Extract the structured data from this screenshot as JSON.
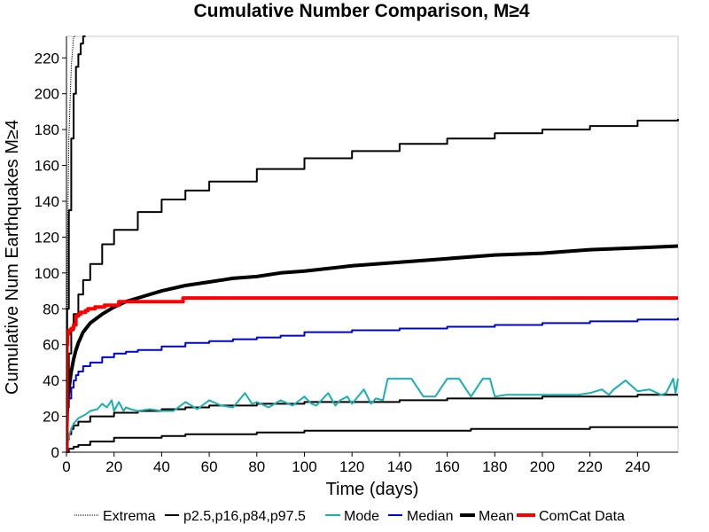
{
  "chart_data": {
    "type": "line",
    "title": "Cumulative Number Comparison, M≥4",
    "xlabel": "Time (days)",
    "ylabel": "Cumulative Num Earthquakes M≥4",
    "xlim": [
      0,
      257
    ],
    "ylim": [
      0,
      232
    ],
    "xticks": [
      0,
      20,
      40,
      60,
      80,
      100,
      120,
      140,
      160,
      180,
      200,
      220,
      240
    ],
    "yticks": [
      0,
      20,
      40,
      60,
      80,
      100,
      120,
      140,
      160,
      180,
      200,
      220
    ],
    "grid": false,
    "legend_position": "bottom",
    "legend": [
      {
        "label": "Extrema",
        "color": "#000000",
        "style": "dotted"
      },
      {
        "label": "p2.5,p16,p84,p97.5",
        "color": "#000000",
        "style": "thin"
      },
      {
        "label": "Mode",
        "color": "#1ab0b0",
        "style": "thin"
      },
      {
        "label": "Median",
        "color": "#0000dd",
        "style": "thin"
      },
      {
        "label": "Mean",
        "color": "#000000",
        "style": "thick"
      },
      {
        "label": "ComCat Data",
        "color": "#ff0000",
        "style": "thick"
      }
    ],
    "series": [
      {
        "name": "Extrema",
        "color": "#000000",
        "style": "dotted",
        "x": [
          0,
          0.5,
          1,
          2,
          3,
          4
        ],
        "y": [
          0,
          120,
          175,
          215,
          232,
          232
        ]
      },
      {
        "name": "Extrema",
        "color": "#000000",
        "style": "dotted",
        "x": [
          0,
          257
        ],
        "y": [
          0,
          0
        ]
      },
      {
        "name": "p2.5,p16,p84,p97.5",
        "color": "#000000",
        "style": "thin",
        "step": true,
        "x": [
          0,
          0.3,
          1,
          2,
          3,
          4,
          5,
          6,
          7,
          8
        ],
        "y": [
          0,
          80,
          135,
          175,
          200,
          215,
          222,
          228,
          232,
          232
        ]
      },
      {
        "name": "p2.5,p16,p84,p97.5",
        "color": "#000000",
        "style": "thin",
        "step": true,
        "x": [
          0,
          0.5,
          1,
          2,
          3,
          5,
          7,
          10,
          15,
          20,
          30,
          40,
          50,
          60,
          80,
          100,
          120,
          140,
          160,
          180,
          200,
          220,
          240,
          257
        ],
        "y": [
          0,
          35,
          55,
          68,
          77,
          88,
          96,
          105,
          116,
          124,
          134,
          141,
          146,
          151,
          158,
          164,
          168,
          172,
          175,
          178,
          180,
          182,
          185,
          186
        ]
      },
      {
        "name": "p2.5,p16,p84,p97.5",
        "color": "#000000",
        "style": "thin",
        "step": true,
        "x": [
          0,
          0.5,
          1,
          2,
          3,
          5,
          10,
          20,
          30,
          40,
          50,
          60,
          80,
          100,
          120,
          140,
          160,
          180,
          200,
          220,
          240,
          257
        ],
        "y": [
          0,
          7,
          10,
          13,
          15,
          17,
          20,
          22,
          23,
          24,
          25,
          26,
          27,
          28,
          28,
          29,
          30,
          30,
          31,
          31,
          32,
          32
        ]
      },
      {
        "name": "p2.5,p16,p84,p97.5",
        "color": "#000000",
        "style": "thin",
        "step": true,
        "x": [
          0,
          1,
          3,
          5,
          10,
          20,
          40,
          50,
          80,
          100,
          130,
          170,
          200,
          220,
          257
        ],
        "y": [
          0,
          2,
          3,
          4,
          6,
          8,
          9,
          10,
          11,
          12,
          12,
          13,
          13,
          14,
          14
        ]
      },
      {
        "name": "Mode",
        "color": "#1ab0b0",
        "style": "thin",
        "x": [
          0,
          1,
          2,
          3,
          5,
          8,
          10,
          13,
          15,
          17,
          19,
          20,
          22,
          24,
          25,
          27,
          30,
          35,
          40,
          45,
          50,
          55,
          60,
          65,
          70,
          75,
          78,
          80,
          85,
          90,
          95,
          100,
          103,
          105,
          110,
          113,
          115,
          118,
          120,
          125,
          128,
          130,
          133,
          135,
          140,
          145,
          148,
          150,
          155,
          160,
          165,
          170,
          175,
          178,
          180,
          185,
          190,
          195,
          200,
          205,
          210,
          215,
          220,
          225,
          228,
          230,
          235,
          240,
          245,
          250,
          252,
          255,
          256,
          257
        ],
        "y": [
          0,
          9,
          13,
          16,
          19,
          21,
          23,
          24,
          27,
          25,
          29,
          23,
          28,
          23,
          25,
          24,
          23,
          24,
          23,
          23,
          28,
          24,
          29,
          26,
          25,
          33,
          27,
          28,
          25,
          29,
          26,
          31,
          27,
          26,
          33,
          26,
          29,
          31,
          27,
          35,
          27,
          30,
          29,
          41,
          41,
          41,
          35,
          31,
          31,
          41,
          41,
          31,
          41,
          41,
          31,
          32,
          32,
          32,
          32,
          32,
          32,
          32,
          33,
          35,
          32,
          35,
          40,
          34,
          35,
          32,
          33,
          41,
          33,
          41
        ]
      },
      {
        "name": "Median",
        "color": "#0000dd",
        "style": "thin",
        "step": true,
        "x": [
          0,
          0.3,
          0.6,
          1,
          2,
          3,
          4,
          5,
          7,
          10,
          15,
          20,
          25,
          30,
          40,
          50,
          60,
          70,
          80,
          90,
          100,
          120,
          140,
          160,
          180,
          200,
          220,
          240,
          257
        ],
        "y": [
          0,
          18,
          25,
          30,
          36,
          40,
          43,
          45,
          48,
          50,
          53,
          55,
          56,
          57,
          59,
          61,
          62,
          63,
          64,
          65,
          67,
          68,
          69,
          70,
          71,
          72,
          73,
          74,
          75
        ]
      },
      {
        "name": "Mean",
        "color": "#000000",
        "style": "thick",
        "x": [
          0,
          0.3,
          0.6,
          1,
          2,
          3,
          4,
          5,
          7,
          10,
          15,
          20,
          25,
          30,
          40,
          50,
          60,
          70,
          80,
          90,
          100,
          120,
          140,
          160,
          180,
          200,
          220,
          240,
          257
        ],
        "y": [
          0,
          22,
          30,
          35,
          45,
          52,
          57,
          61,
          67,
          72,
          77,
          81,
          84,
          86,
          90,
          93,
          95,
          97,
          98,
          100,
          101,
          104,
          106,
          108,
          110,
          111,
          113,
          114,
          115
        ]
      },
      {
        "name": "ComCat Data",
        "color": "#ff0000",
        "style": "thick",
        "step": true,
        "x": [
          0,
          0.2,
          0.5,
          1,
          2,
          3,
          4,
          5,
          6,
          7,
          8,
          9,
          10,
          12,
          14,
          16,
          18,
          20,
          22,
          25,
          30,
          35,
          40,
          45,
          48,
          49,
          257
        ],
        "y": [
          0,
          60,
          66,
          68,
          69,
          71,
          76,
          77,
          78,
          78,
          79,
          80,
          80,
          81,
          81,
          82,
          82,
          82,
          84,
          84,
          84,
          84,
          84,
          84,
          84,
          86,
          86
        ]
      }
    ]
  }
}
